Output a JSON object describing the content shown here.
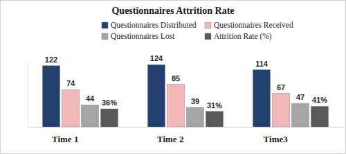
{
  "chart_data": {
    "type": "bar",
    "title": "Questionnaires Attrition Rate",
    "categories": [
      "Time 1",
      "Time 2",
      "Time3"
    ],
    "series": [
      {
        "name": "Questionnaires Distributed",
        "color": "#24406e",
        "values": [
          122,
          124,
          114
        ]
      },
      {
        "name": "Questionnaires Received",
        "color": "#f2b8b8",
        "values": [
          74,
          85,
          67
        ]
      },
      {
        "name": "Questionnaires Lost",
        "color": "#a6a6a6",
        "values": [
          44,
          39,
          47
        ]
      },
      {
        "name": "Attrition Rate (%)",
        "color": "#595959",
        "values": [
          36,
          31,
          41
        ],
        "value_labels": [
          "36%",
          "31%",
          "41%"
        ]
      }
    ],
    "ylim": [
      0,
      130
    ],
    "tick_labels": "x",
    "grid": false,
    "legend": "top",
    "data_labels": true
  }
}
